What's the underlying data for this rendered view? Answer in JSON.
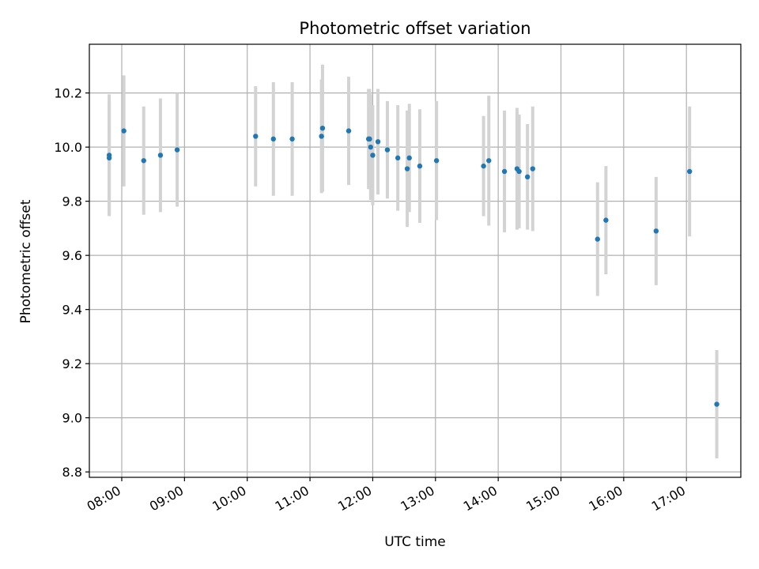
{
  "chart_data": {
    "type": "scatter",
    "title": "Photometric offset variation",
    "xlabel": "UTC time",
    "ylabel": "Photometric offset",
    "x_unit": "UTC time (HH:MM)",
    "xlim": [
      "07:29",
      "17:52"
    ],
    "ylim": [
      8.78,
      10.38
    ],
    "x_ticks": [
      "08:00",
      "09:00",
      "10:00",
      "11:00",
      "12:00",
      "13:00",
      "14:00",
      "15:00",
      "16:00",
      "17:00"
    ],
    "y_ticks": [
      "8.8",
      "9.0",
      "9.2",
      "9.4",
      "9.6",
      "9.8",
      "10.0",
      "10.2"
    ],
    "grid": true,
    "legend": "none",
    "marker_color": "#1f77b4",
    "errorbar_color": "#d3d3d3",
    "points": [
      {
        "t": "07:48",
        "y": 9.97,
        "err": 0.225
      },
      {
        "t": "07:48",
        "y": 9.96,
        "err": 0.21
      },
      {
        "t": "08:02",
        "y": 10.06,
        "err": 0.205
      },
      {
        "t": "08:21",
        "y": 9.95,
        "err": 0.2
      },
      {
        "t": "08:37",
        "y": 9.97,
        "err": 0.21
      },
      {
        "t": "08:53",
        "y": 9.99,
        "err": 0.21
      },
      {
        "t": "10:08",
        "y": 10.04,
        "err": 0.185
      },
      {
        "t": "10:25",
        "y": 10.03,
        "err": 0.21
      },
      {
        "t": "10:43",
        "y": 10.03,
        "err": 0.21
      },
      {
        "t": "11:11",
        "y": 10.04,
        "err": 0.21
      },
      {
        "t": "11:12",
        "y": 10.07,
        "err": 0.235
      },
      {
        "t": "11:37",
        "y": 10.06,
        "err": 0.2
      },
      {
        "t": "11:56",
        "y": 10.03,
        "err": 0.185
      },
      {
        "t": "11:57",
        "y": 10.03,
        "err": 0.185
      },
      {
        "t": "11:58",
        "y": 10.0,
        "err": 0.195
      },
      {
        "t": "12:00",
        "y": 9.97,
        "err": 0.185
      },
      {
        "t": "12:05",
        "y": 10.02,
        "err": 0.195
      },
      {
        "t": "12:14",
        "y": 9.99,
        "err": 0.18
      },
      {
        "t": "12:24",
        "y": 9.96,
        "err": 0.195
      },
      {
        "t": "12:33",
        "y": 9.92,
        "err": 0.215
      },
      {
        "t": "12:35",
        "y": 9.96,
        "err": 0.2
      },
      {
        "t": "12:45",
        "y": 9.93,
        "err": 0.21
      },
      {
        "t": "13:01",
        "y": 9.95,
        "err": 0.22
      },
      {
        "t": "13:46",
        "y": 9.93,
        "err": 0.185
      },
      {
        "t": "13:51",
        "y": 9.95,
        "err": 0.24
      },
      {
        "t": "14:06",
        "y": 9.91,
        "err": 0.225
      },
      {
        "t": "14:18",
        "y": 9.92,
        "err": 0.225
      },
      {
        "t": "14:20",
        "y": 9.91,
        "err": 0.21
      },
      {
        "t": "14:28",
        "y": 9.89,
        "err": 0.195
      },
      {
        "t": "14:33",
        "y": 9.92,
        "err": 0.23
      },
      {
        "t": "15:35",
        "y": 9.66,
        "err": 0.21
      },
      {
        "t": "15:43",
        "y": 9.73,
        "err": 0.2
      },
      {
        "t": "16:31",
        "y": 9.69,
        "err": 0.2
      },
      {
        "t": "17:03",
        "y": 9.91,
        "err": 0.24
      },
      {
        "t": "17:29",
        "y": 9.05,
        "err": 0.2
      }
    ]
  }
}
